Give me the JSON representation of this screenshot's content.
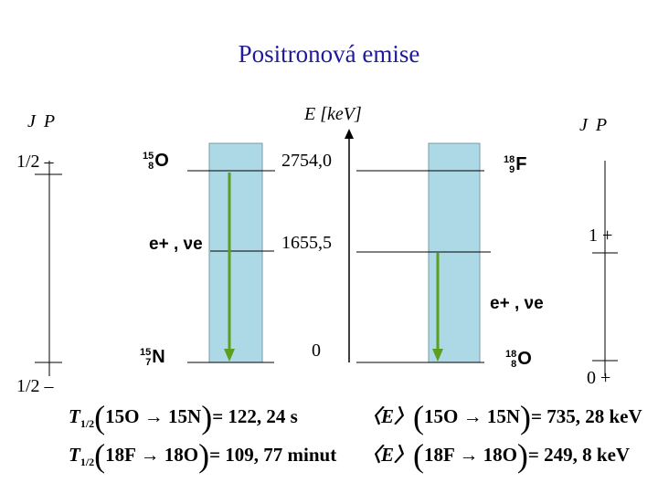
{
  "title": "Positronová emise",
  "axis_label": "E [keV]",
  "jp_left": "J P",
  "jp_right": "J P",
  "levels": {
    "e1": "2754,0",
    "e2": "1655,5",
    "e3": "0"
  },
  "left_spins": {
    "top": "1/2 –",
    "bottom": "1/2 –"
  },
  "right_spins": {
    "top": "1 +",
    "bottom": "0 +"
  },
  "nuclides": {
    "o15": {
      "a": "15",
      "z": "8",
      "sym": "O"
    },
    "n15": {
      "a": "15",
      "z": "7",
      "sym": "N"
    },
    "f18": {
      "a": "18",
      "z": "9",
      "sym": "F"
    },
    "o18": {
      "a": "18",
      "z": "8",
      "sym": "O"
    }
  },
  "emission_left": "e+ , νe",
  "emission_right": "e+ , νe",
  "formulas": {
    "t_o15": {
      "lhs": "T",
      "sub": "1/2",
      "parent": "15O",
      "daughter": "15N",
      "value": "= 122, 24 s"
    },
    "t_f18": {
      "lhs": "T",
      "sub": "1/2",
      "parent": "18F",
      "daughter": "18O",
      "value": "= 109, 77 minut"
    },
    "e_o15": {
      "lhs": "〈E〉",
      "parent": "15O",
      "daughter": "15N",
      "value": "= 735, 28 keV"
    },
    "e_f18": {
      "lhs": "〈E〉",
      "parent": "18F",
      "daughter": "18O",
      "value": "= 249, 8 keV"
    }
  },
  "colors": {
    "title": "#1f1a99",
    "box": "#add8e6",
    "arrow": "#5c9e1e"
  }
}
